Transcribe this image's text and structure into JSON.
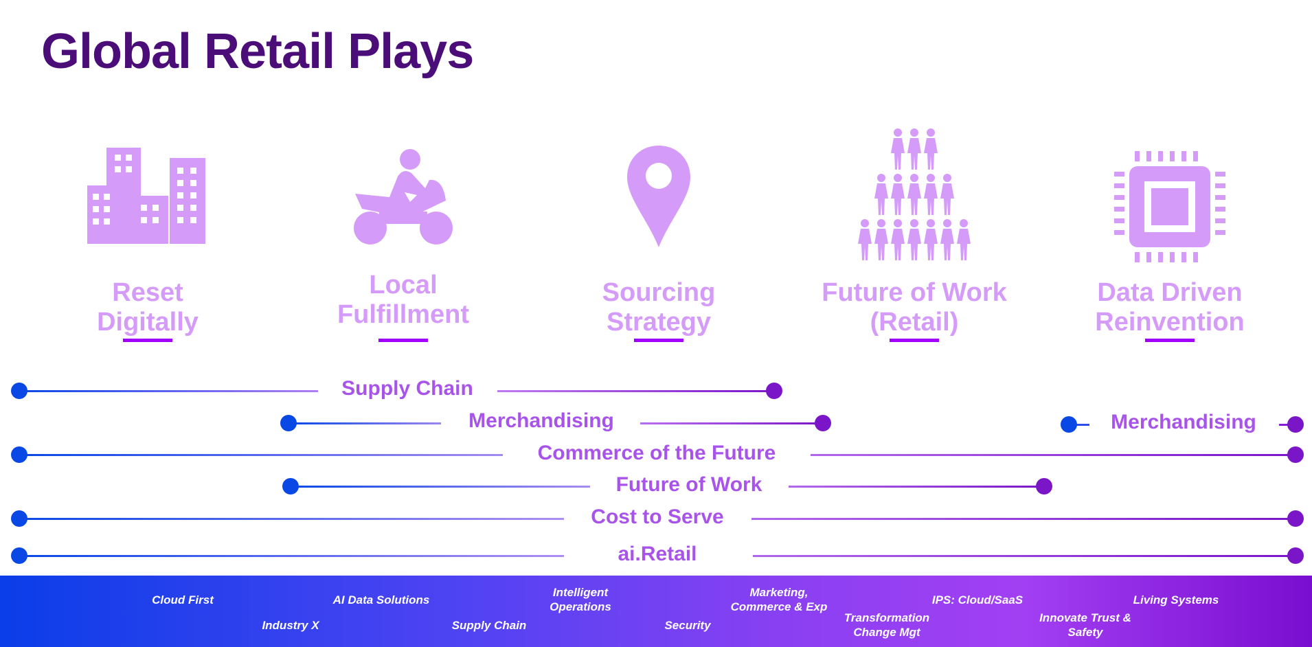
{
  "title": "Global Retail Plays",
  "colors": {
    "title": "#4b0e78",
    "play_label": "#d59bf8",
    "underline": "#a100ff",
    "track_start": "#0a48e6",
    "track_end": "#7a16c8",
    "track_label": "#a854ea"
  },
  "plays": [
    {
      "label": "Reset\nDigitally",
      "icon": "buildings-icon"
    },
    {
      "label": "Local\nFulfillment",
      "icon": "motorcycle-rider-icon"
    },
    {
      "label": "Sourcing\nStrategy",
      "icon": "map-pin-icon"
    },
    {
      "label": "Future of Work\n(Retail)",
      "icon": "people-pyramid-icon"
    },
    {
      "label": "Data Driven\nReinvention",
      "icon": "cpu-chip-icon"
    }
  ],
  "tracks": [
    {
      "label": "Supply Chain"
    },
    {
      "label": "Merchandising"
    },
    {
      "label": "Merchandising"
    },
    {
      "label": "Commerce of the Future"
    },
    {
      "label": "Future of Work"
    },
    {
      "label": "Cost to Serve"
    },
    {
      "label": "ai.Retail"
    }
  ],
  "capabilities": [
    {
      "label": "Cloud First"
    },
    {
      "label": "Industry X"
    },
    {
      "label": "AI Data Solutions"
    },
    {
      "label": "Supply Chain"
    },
    {
      "label": "Intelligent\nOperations"
    },
    {
      "label": "Security"
    },
    {
      "label": "Marketing,\nCommerce & Exp"
    },
    {
      "label": "Transformation\nChange Mgt"
    },
    {
      "label": "IPS: Cloud/SaaS"
    },
    {
      "label": "Innovate Trust &\nSafety"
    },
    {
      "label": "Living Systems"
    }
  ]
}
